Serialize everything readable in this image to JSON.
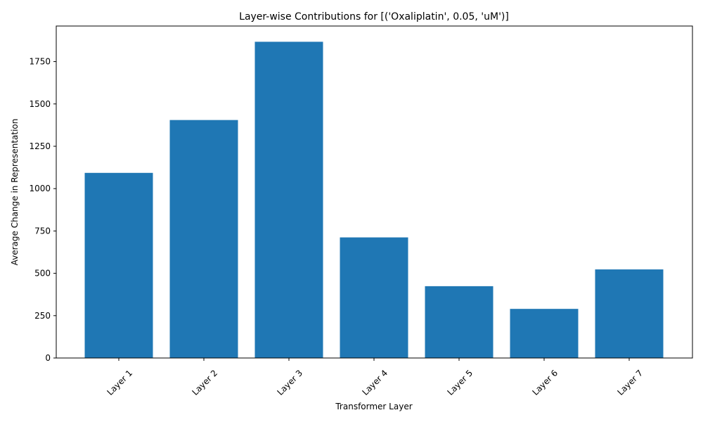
{
  "chart_data": {
    "type": "bar",
    "title": "Layer-wise Contributions for [('Oxaliplatin', 0.05, 'uM')]",
    "xlabel": "Transformer Layer",
    "ylabel": "Average Change in Representation",
    "categories": [
      "Layer 1",
      "Layer 2",
      "Layer 3",
      "Layer 4",
      "Layer 5",
      "Layer 6",
      "Layer 7"
    ],
    "values": [
      1093,
      1405,
      1867,
      712,
      424,
      290,
      523
    ],
    "ylim": [
      0,
      1960
    ],
    "yticks": [
      0,
      250,
      500,
      750,
      1000,
      1250,
      1500,
      1750
    ],
    "bar_color": "#1f77b4",
    "grid": false,
    "legend": "none"
  }
}
